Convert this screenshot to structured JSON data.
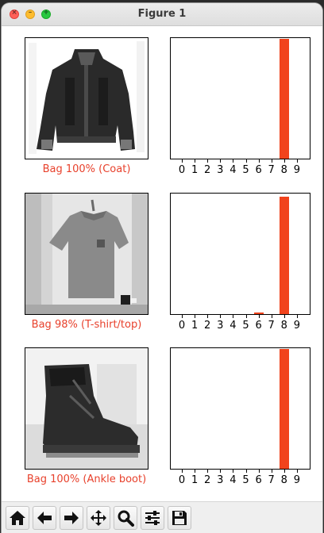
{
  "window": {
    "title": "Figure 1"
  },
  "toolbar": {
    "buttons": [
      {
        "icon": "home-icon"
      },
      {
        "icon": "back-arrow-icon"
      },
      {
        "icon": "forward-arrow-icon"
      },
      {
        "icon": "pan-icon"
      },
      {
        "icon": "zoom-icon"
      },
      {
        "icon": "configure-subplots-icon"
      },
      {
        "icon": "save-icon"
      }
    ]
  },
  "colors": {
    "bar": "#f1431c",
    "caption": "#e8412c"
  },
  "chart_data": [
    {
      "type": "bar",
      "caption": "Bag 100% (Coat)",
      "categories": [
        "0",
        "1",
        "2",
        "3",
        "4",
        "5",
        "6",
        "7",
        "8",
        "9"
      ],
      "values": [
        0,
        0,
        0,
        0,
        0,
        0,
        0,
        0,
        1.0,
        0
      ],
      "ylim": [
        0,
        1
      ]
    },
    {
      "type": "bar",
      "caption": "Bag 98% (T-shirt/top)",
      "categories": [
        "0",
        "1",
        "2",
        "3",
        "4",
        "5",
        "6",
        "7",
        "8",
        "9"
      ],
      "values": [
        0,
        0,
        0,
        0,
        0,
        0,
        0.01,
        0,
        0.98,
        0
      ],
      "ylim": [
        0,
        1
      ]
    },
    {
      "type": "bar",
      "caption": "Bag 100% (Ankle boot)",
      "categories": [
        "0",
        "1",
        "2",
        "3",
        "4",
        "5",
        "6",
        "7",
        "8",
        "9"
      ],
      "values": [
        0,
        0,
        0,
        0,
        0,
        0,
        0,
        0,
        1.0,
        0
      ],
      "ylim": [
        0,
        1
      ]
    }
  ]
}
